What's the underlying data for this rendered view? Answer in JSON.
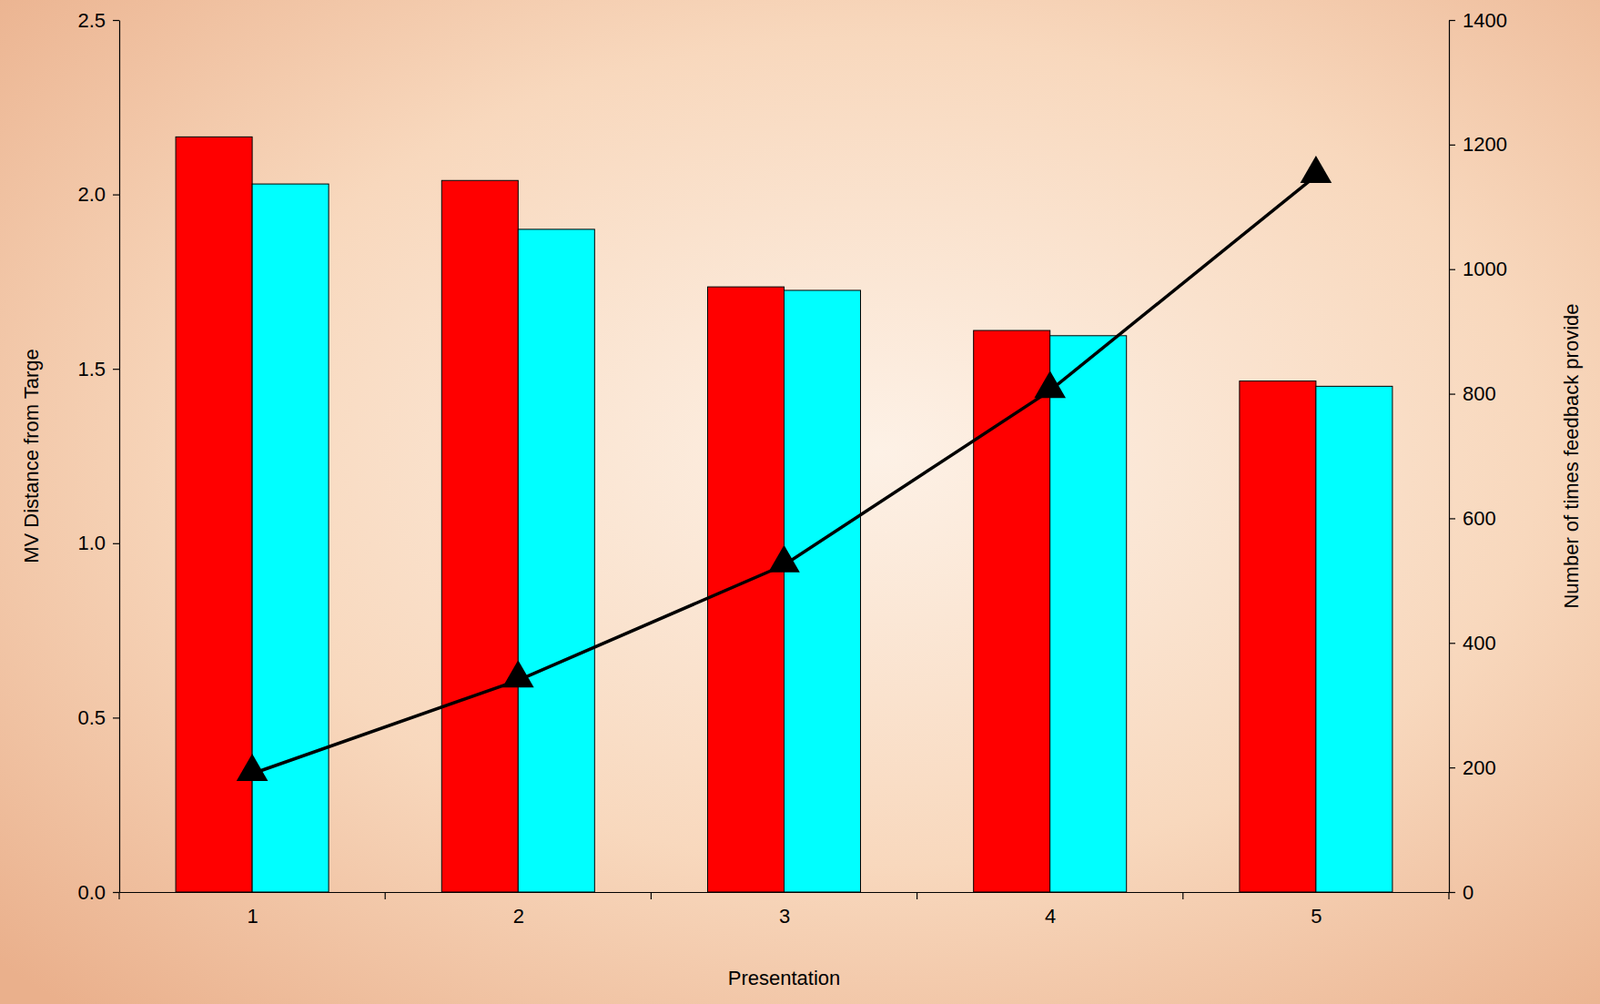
{
  "chart_data": {
    "type": "bar",
    "x_label": "Presentation",
    "y_label": "MV Distance from Targe",
    "y2_label": "Number of times feedback provide",
    "categories": [
      "1",
      "2",
      "3",
      "4",
      "5"
    ],
    "series": [
      {
        "color": "#ff0000",
        "values": [
          2.165,
          2.04,
          1.735,
          1.61,
          1.465
        ]
      },
      {
        "color": "#00ffff",
        "values": [
          2.03,
          1.9,
          1.725,
          1.595,
          1.45
        ]
      },
      {
        "type": "line",
        "axis": "y2",
        "color": "#000000",
        "marker": "triangle",
        "values": [
          190,
          340,
          525,
          805,
          1150
        ]
      }
    ],
    "ylim": [
      0,
      2.5
    ],
    "yticks": [
      {
        "value": 0,
        "label": "0.0"
      },
      0.5,
      {
        "value": 1,
        "label": "1.0"
      },
      1.5,
      {
        "value": 2,
        "label": "2.0"
      },
      2.5
    ],
    "y2lim": [
      0,
      1400
    ],
    "y2ticks": [
      0,
      200,
      400,
      600,
      800,
      1000,
      1200,
      1400
    ],
    "grid": false
  }
}
